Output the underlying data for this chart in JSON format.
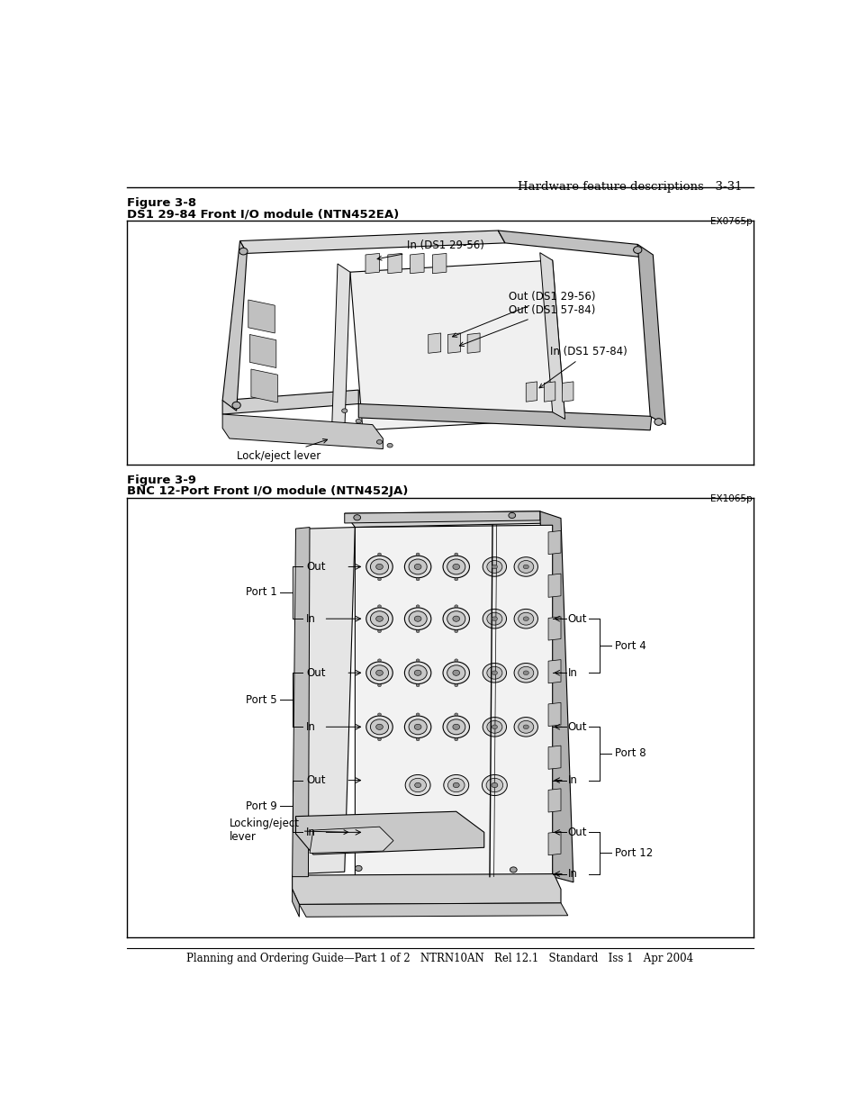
{
  "page_header_right": "Hardware feature descriptions   3-31",
  "page_footer": "Planning and Ordering Guide—Part 1 of 2   NTRN10AN   Rel 12.1   Standard   Iss 1   Apr 2004",
  "fig1_label": "Figure 3-8",
  "fig1_title": "DS1 29-84 Front I/O module (NTN452EA)",
  "fig1_code": "EX0765p",
  "fig2_label": "Figure 3-9",
  "fig2_title": "BNC 12-Port Front I/O module (NTN452JA)",
  "fig2_code": "EX1065p",
  "bg_color": "#ffffff"
}
